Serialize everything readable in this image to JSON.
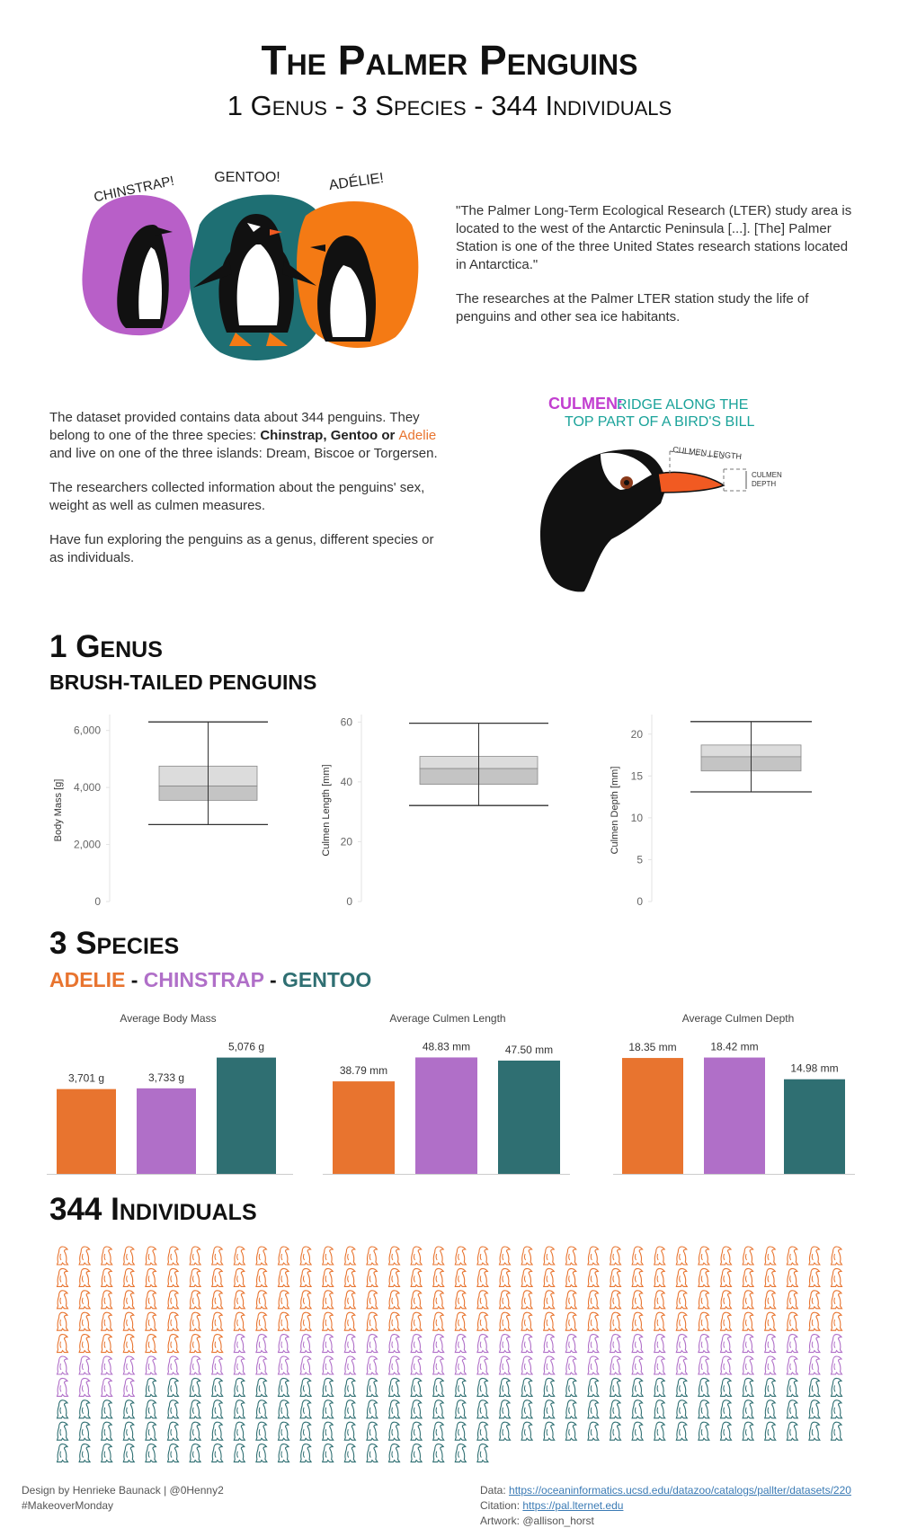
{
  "header": {
    "title": "The Palmer Penguins",
    "subtitle": "1 Genus - 3 Species - 344 Individuals"
  },
  "artwork": {
    "labels": [
      "CHINSTRAP!",
      "GENTOO!",
      "ADÉLIE!"
    ],
    "culmen_title": "CULMEN:",
    "culmen_line1": "RIDGE ALONG THE",
    "culmen_line2": "TOP PART OF A BIRD'S BILL",
    "culmen_length": "CULMEN LENGTH",
    "culmen_depth": [
      "CULMEN",
      "DEPTH"
    ]
  },
  "intro": {
    "quote": "\"The Palmer Long-Term Ecological Research (LTER) study area is located to the west of the Antarctic Peninsula [...]. [The] Palmer Station is one of the three United States research stations located in Antarctica.\"",
    "text": "The researches at the Palmer LTER station study the life of penguins and other sea ice habitants."
  },
  "dataset": {
    "p1_start": "The dataset provided contains data about 344 penguins. They belong to one of the three species: ",
    "chinstrap": "Chinstrap",
    "sep1": ", ",
    "gentoo": "Gentoo",
    "sep2": " or ",
    "adelie": "Adelie",
    "p1_end": " and live on one of the three islands: Dream, Biscoe or Torgersen.",
    "p2": "The researchers collected information about the penguins' sex, weight as well as culmen measures.",
    "p3": "Have fun exploring the penguins as a genus, different species or as individuals."
  },
  "sections": {
    "genus_title": "1 Genus",
    "genus_subtitle": "BRUSH-TAILED PENGUINS",
    "species_title": "3 Species",
    "species_subtitle": [
      "ADELIE",
      "-",
      "CHINSTRAP",
      "-",
      "GENTOO"
    ],
    "individuals_title": "344 Individuals"
  },
  "chart_data": [
    {
      "type": "box",
      "y_label": "Body Mass [g]",
      "ylim": [
        0,
        6400
      ],
      "yticks": [
        0,
        {
          "value": 2000,
          "label": "2,000"
        },
        {
          "value": 4000,
          "label": "4,000"
        },
        {
          "value": 6000,
          "label": "6,000"
        }
      ],
      "box": {
        "min": 2700,
        "q1": 3550,
        "median": 4050,
        "q3": 4750,
        "max": 6300
      }
    },
    {
      "type": "box",
      "y_label": "Culmen Length [mm]",
      "ylim": [
        0,
        61
      ],
      "yticks": [
        0,
        20,
        40,
        60
      ],
      "box": {
        "min": 32.1,
        "q1": 39.2,
        "median": 44.45,
        "q3": 48.5,
        "max": 59.6
      }
    },
    {
      "type": "box",
      "y_label": "Culmen Depth [mm]",
      "ylim": [
        0,
        21.8
      ],
      "yticks": [
        0,
        5,
        10,
        15,
        20
      ],
      "box": {
        "min": 13.1,
        "q1": 15.6,
        "median": 17.3,
        "q3": 18.7,
        "max": 21.5
      }
    },
    {
      "type": "bar",
      "title": "Average Body Mass",
      "ylim": [
        0,
        5100
      ],
      "values": [
        3701,
        3733,
        5076
      ],
      "value_labels": [
        "3,701 g",
        "3,733 g",
        "5,076 g"
      ],
      "colors": [
        "#e8742f",
        "#b06fc8",
        "#2f6f72"
      ]
    },
    {
      "type": "bar",
      "title": "Average Culmen Length",
      "ylim": [
        0,
        49
      ],
      "values": [
        38.79,
        48.83,
        47.5
      ],
      "value_labels": [
        "38.79 mm",
        "48.83 mm",
        "47.50 mm"
      ],
      "colors": [
        "#e8742f",
        "#b06fc8",
        "#2f6f72"
      ]
    },
    {
      "type": "bar",
      "title": "Average Culmen Depth",
      "ylim": [
        0,
        18.5
      ],
      "values": [
        18.35,
        18.42,
        14.98
      ],
      "value_labels": [
        "18.35 mm",
        "18.42 mm",
        "14.98 mm"
      ],
      "colors": [
        "#e8742f",
        "#b06fc8",
        "#2f6f72"
      ]
    },
    {
      "type": "unit",
      "values": [
        152,
        68,
        124
      ],
      "colors": [
        "#e8742f",
        "#b06fc8",
        "#2f6f72"
      ]
    }
  ],
  "footer": {
    "design": "Design by Henrieke Baunack | @0Henny2",
    "tag": "#MakeoverMonday",
    "data_label": "Data:",
    "data_url": "https://oceaninformatics.ucsd.edu/datazoo/catalogs/pallter/datasets/220",
    "citation_label": "Citation:",
    "citation_url": "https://pal.lternet.edu",
    "artwork": "Artwork: @allison_horst"
  }
}
